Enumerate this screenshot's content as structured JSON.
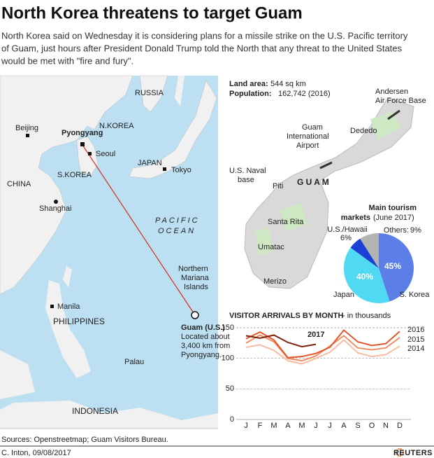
{
  "header": {
    "title": "North Korea threatens to target Guam",
    "description": [
      "North Korea said on Wednesday it is considering plans for a missile strike on the U.S. Pacific territory",
      "of Guam, just hours after President Donald Trump told the North that any threat to the United States",
      "would be met with \"fire and fury\"."
    ]
  },
  "map": {
    "russia": "RUSSIA",
    "nkorea": "N.KOREA",
    "beijing": "Beijing",
    "pyongyang": "Pyongyang",
    "seoul": "Seoul",
    "japan": "JAPAN",
    "tokyo": "Tokyo",
    "china": "CHINA",
    "skorea": "S.KOREA",
    "shanghai": "Shanghai",
    "ocean": [
      "PACIFIC",
      "OCEAN"
    ],
    "mariana": [
      "Northern",
      "Mariana",
      "Islands"
    ],
    "manila": "Manila",
    "philippines": "PHILIPPINES",
    "guam": "Guam (U.S.)",
    "guam_note": [
      "Located about",
      "3,400 km from",
      "Pyongyang."
    ],
    "palau": "Palau",
    "indonesia": "INDONESIA"
  },
  "guam_map": {
    "andersen": [
      "Andersen",
      "Air Force Base"
    ],
    "airport": [
      "Guam",
      "International",
      "Airport"
    ],
    "dededo": "Dededo",
    "naval": [
      "U.S. Naval",
      "base"
    ],
    "piti": "Piti",
    "guam": "G U A M",
    "santa_rita": "Santa Rita",
    "umatac": "Umatac",
    "merizo": "Merizo"
  },
  "guam_facts": {
    "land_area_label": "Land area:",
    "land_area": "544 sq km",
    "population_label": "Population:",
    "population": "162,742 (2016)"
  },
  "chart_data": [
    {
      "type": "pie",
      "title": [
        "Main tourism",
        "markets"
      ],
      "subtitle": "(June 2017)",
      "categories": [
        "S. Korea",
        "Japan",
        "U.S./Hawaii",
        "Others:"
      ],
      "values": [
        45,
        40,
        6,
        9
      ],
      "value_labels": [
        "45%",
        "40%",
        "6%",
        "9%"
      ],
      "colors": [
        "#5b7fe6",
        "#4fd9f2",
        "#1c3fd4",
        "#b3b3b3"
      ]
    },
    {
      "type": "line",
      "title": "VISITOR ARRIVALS BY MONTH",
      "subtitle": "- in thousands",
      "categories": [
        "J",
        "F",
        "M",
        "A",
        "M",
        "J",
        "J",
        "A",
        "S",
        "O",
        "N",
        "D"
      ],
      "series": [
        {
          "name": "2014",
          "color": "#f7bca3",
          "values": [
            118,
            122,
            113,
            96,
            91,
            100,
            110,
            130,
            109,
            103,
            106,
            120
          ]
        },
        {
          "name": "2015",
          "color": "#f08e66",
          "values": [
            125,
            138,
            127,
            100,
            96,
            104,
            120,
            137,
            117,
            114,
            117,
            134
          ]
        },
        {
          "name": "2016",
          "color": "#e2572a",
          "values": [
            132,
            143,
            130,
            101,
            103,
            108,
            118,
            146,
            127,
            121,
            124,
            144
          ]
        },
        {
          "name": "2017",
          "color": "#7b2410",
          "values": [
            137,
            133,
            138,
            126,
            119,
            123,
            null,
            null,
            null,
            null,
            null,
            null
          ]
        }
      ],
      "ylim": [
        0,
        150
      ],
      "yticks": [
        0,
        50,
        100,
        150
      ],
      "grid": true
    }
  ],
  "footer": {
    "sources": "Sources: Openstreetmap; Guam Visitors Bureau.",
    "credit": "C. Inton, 09/08/2017",
    "brand": "REUTERS"
  }
}
